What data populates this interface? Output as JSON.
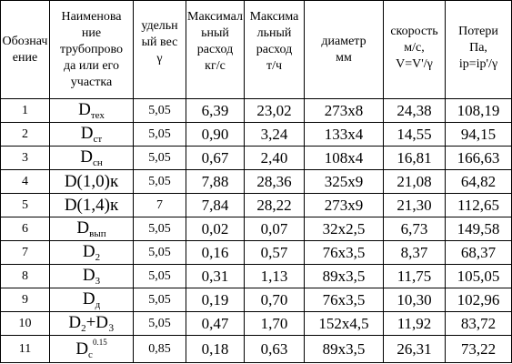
{
  "headers": [
    "Обозначение",
    "Наименование трубопровода или его участка",
    "удельный вес γ",
    "Максимальный расход кг/с",
    "Максимальный расход т/ч",
    "диаметр мм",
    "скорость м/с, V=V'/γ",
    "Потери Па, ip=ip'/γ"
  ],
  "header_lines": [
    "Обознач\nение",
    "Наименова\nние\nтрубопрово\nда или его\nучастка",
    "удельн\nый вес\nγ",
    "Максимал\nьный\nрасход\nкг/с",
    "Максима\nльный\nрасход\nт/ч",
    "диаметр\nмм",
    "скорость\nм/с,\nV=V'/γ",
    "Потери\nПа,\nip=ip'/γ"
  ],
  "rows": [
    {
      "num": "1",
      "desig": {
        "base": "D",
        "sub": "тех",
        "sup": "",
        "tail": ""
      },
      "weight": "5,05",
      "kgs": "6,39",
      "th": "23,02",
      "diam": "273х8",
      "speed": "24,38",
      "loss": "108,19"
    },
    {
      "num": "2",
      "desig": {
        "base": "D",
        "sub": "ст",
        "sup": "",
        "tail": ""
      },
      "weight": "5,05",
      "kgs": "0,90",
      "th": "3,24",
      "diam": "133х4",
      "speed": "14,55",
      "loss": "94,15"
    },
    {
      "num": "3",
      "desig": {
        "base": "D",
        "sub": "сн",
        "sup": "",
        "tail": ""
      },
      "weight": "5,05",
      "kgs": "0,67",
      "th": "2,40",
      "diam": "108х4",
      "speed": "16,81",
      "loss": "166,63"
    },
    {
      "num": "4",
      "desig": {
        "base": "D(1,0)к",
        "sub": "",
        "sup": "",
        "tail": ""
      },
      "weight": "5,05",
      "kgs": "7,88",
      "th": "28,36",
      "diam": "325х9",
      "speed": "21,08",
      "loss": "64,82"
    },
    {
      "num": "5",
      "desig": {
        "base": "D(1,4)к",
        "sub": "",
        "sup": "",
        "tail": ""
      },
      "weight": "7",
      "kgs": "7,84",
      "th": "28,22",
      "diam": "273х9",
      "speed": "21,30",
      "loss": "112,65"
    },
    {
      "num": "6",
      "desig": {
        "base": "D",
        "sub": "вып",
        "sup": "",
        "tail": ""
      },
      "weight": "5,05",
      "kgs": "0,02",
      "th": "0,07",
      "diam": "32х2,5",
      "speed": "6,73",
      "loss": "149,58"
    },
    {
      "num": "7",
      "desig": {
        "base": "D",
        "sub": "2",
        "sup": "",
        "tail": ""
      },
      "weight": "5,05",
      "kgs": "0,16",
      "th": "0,57",
      "diam": "76х3,5",
      "speed": "8,37",
      "loss": "68,37"
    },
    {
      "num": "8",
      "desig": {
        "base": "D",
        "sub": "3",
        "sup": "",
        "tail": ""
      },
      "weight": "5,05",
      "kgs": "0,31",
      "th": "1,13",
      "diam": "89х3,5",
      "speed": "11,75",
      "loss": "105,05"
    },
    {
      "num": "9",
      "desig": {
        "base": "D",
        "sub": "д",
        "sup": "",
        "tail": ""
      },
      "weight": "5,05",
      "kgs": "0,19",
      "th": "0,70",
      "diam": "76х3,5",
      "speed": "10,30",
      "loss": "102,96"
    },
    {
      "num": "10",
      "desig": {
        "base": "D",
        "sub": "2",
        "sup": "",
        "tail": "+D₃"
      },
      "weight": "5,05",
      "kgs": "0,47",
      "th": "1,70",
      "diam": "152х4,5",
      "speed": "11,92",
      "loss": "83,72"
    },
    {
      "num": "11",
      "desig": {
        "base": "D",
        "sub": "c",
        "sup": "0.15",
        "tail": ""
      },
      "weight": "0,85",
      "kgs": "0,18",
      "th": "0,63",
      "diam": "89х3,5",
      "speed": "26,31",
      "loss": "73,22"
    }
  ]
}
